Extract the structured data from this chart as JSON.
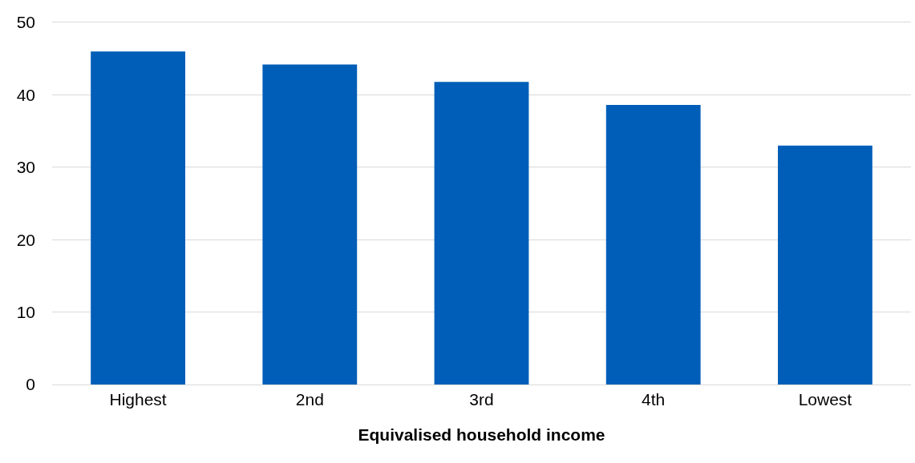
{
  "chart_data": {
    "type": "bar",
    "xlabel": "Equivalised household income",
    "categories": [
      "Highest",
      "2nd",
      "3rd",
      "4th",
      "Lowest"
    ],
    "values": [
      46.0,
      44.2,
      41.8,
      38.6,
      33.0
    ],
    "color": "#005eb8",
    "ylim": [
      0,
      50
    ],
    "yticks": [
      0,
      10,
      20,
      30,
      40,
      50
    ],
    "grid": "y"
  }
}
